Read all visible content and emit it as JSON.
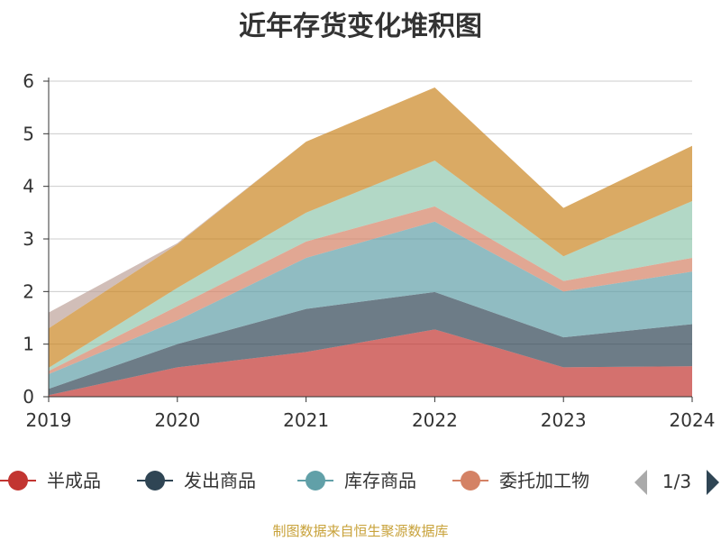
{
  "title": "近年存货变化堆积图",
  "source": "制图数据来自恒生聚源数据库",
  "legend": {
    "page_indicator": "1/3"
  },
  "chart_data": {
    "type": "area",
    "stacked": true,
    "x": [
      "2019",
      "2020",
      "2021",
      "2022",
      "2023",
      "2024"
    ],
    "ylim": [
      0,
      6
    ],
    "yticks": [
      "0",
      "1",
      "2",
      "3",
      "4",
      "5",
      "6"
    ],
    "grid": true,
    "legend_position": "bottom",
    "series": [
      {
        "name": "半成品",
        "color": "#c23531",
        "values": [
          0.03,
          0.56,
          0.85,
          1.28,
          0.56,
          0.58
        ]
      },
      {
        "name": "发出商品",
        "color": "#2f4554",
        "values": [
          0.12,
          0.44,
          0.82,
          0.71,
          0.57,
          0.8
        ]
      },
      {
        "name": "库存商品",
        "color": "#61a0a8",
        "values": [
          0.28,
          0.45,
          0.97,
          1.34,
          0.87,
          1.0
        ]
      },
      {
        "name": "委托加工物",
        "color": "#d48265",
        "values": [
          0.06,
          0.27,
          0.31,
          0.29,
          0.2,
          0.26
        ]
      },
      {
        "color": "#91c7ae",
        "values": [
          0.06,
          0.35,
          0.55,
          0.87,
          0.47,
          1.08
        ]
      },
      {
        "color": "#ca8622",
        "values": [
          0.75,
          0.83,
          1.35,
          1.39,
          0.92,
          1.05
        ]
      },
      {
        "color": "#bda29a",
        "values": [
          0.3,
          0.02,
          0.0,
          0.0,
          0.0,
          0.0
        ]
      }
    ]
  }
}
